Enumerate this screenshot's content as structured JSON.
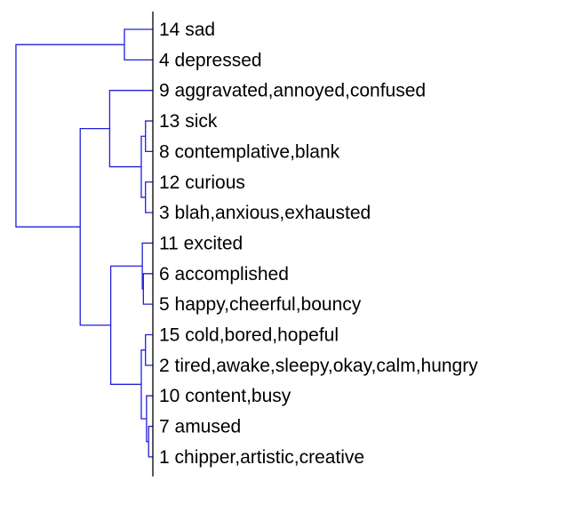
{
  "chart_data": {
    "type": "dendrogram",
    "orientation": "horizontal",
    "link_color": "#2020d8",
    "labels": [
      "14 sad",
      "4 depressed",
      "9 aggravated,annoyed,confused",
      "13 sick",
      "8 contemplative,blank",
      "12 curious",
      "3 blah,anxious,exhausted",
      "11 excited",
      "6 accomplished",
      "5 happy,cheerful,bouncy",
      "15 cold,bored,hopeful",
      "2 tired,awake,sleepy,okay,calm,hungry",
      "10 content,busy",
      "7 amused",
      "1 chipper,artistic,creative"
    ],
    "merges": [
      {
        "id": "c0",
        "left": 13,
        "right": 14,
        "height": 0.04
      },
      {
        "id": "c1",
        "left": 12,
        "right": "c0",
        "height": 0.06
      },
      {
        "id": "c2",
        "left": 10,
        "right": 11,
        "height": 0.07
      },
      {
        "id": "c3",
        "left": 3,
        "right": 4,
        "height": 0.07
      },
      {
        "id": "c4",
        "left": 5,
        "right": 6,
        "height": 0.07
      },
      {
        "id": "c5",
        "left": 8,
        "right": 9,
        "height": 0.09
      },
      {
        "id": "c6",
        "left": 7,
        "right": "c5",
        "height": 0.1
      },
      {
        "id": "c7",
        "left": "c2",
        "right": "c1",
        "height": 0.11
      },
      {
        "id": "c8",
        "left": "c3",
        "right": "c4",
        "height": 0.11
      },
      {
        "id": "c9",
        "left": "c6",
        "right": "c7",
        "height": 0.4
      },
      {
        "id": "c10",
        "left": 2,
        "right": "c8",
        "height": 0.41
      },
      {
        "id": "c11",
        "left": 0,
        "right": 1,
        "height": 0.27
      },
      {
        "id": "c12",
        "left": "c10",
        "right": "c9",
        "height": 0.69
      },
      {
        "id": "c13",
        "left": "c11",
        "right": "c12",
        "height": 1.3
      }
    ]
  }
}
